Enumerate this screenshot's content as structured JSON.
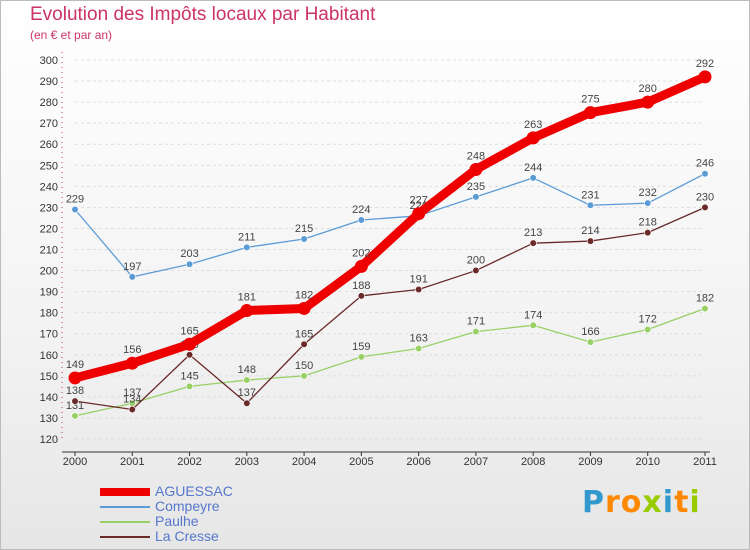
{
  "title": "Evolution des Impôts locaux par Habitant",
  "subtitle": "(en € et par an)",
  "logo": "Proxiti",
  "chart_data": {
    "type": "line",
    "title": "Evolution des Impôts locaux par Habitant",
    "subtitle": "(en € et par an)",
    "xlabel": "",
    "ylabel": "",
    "ylim": [
      120,
      300
    ],
    "yticks": [
      120,
      130,
      140,
      150,
      160,
      170,
      180,
      190,
      200,
      210,
      220,
      230,
      240,
      250,
      260,
      270,
      280,
      290,
      300
    ],
    "x": [
      "2000",
      "2001",
      "2002",
      "2003",
      "2004",
      "2005",
      "2006",
      "2007",
      "2008",
      "2009",
      "2010",
      "2011"
    ],
    "series": [
      {
        "name": "Compeyre",
        "color": "#5b9bd5",
        "values": [
          229,
          197,
          203,
          211,
          215,
          224,
          226,
          235,
          244,
          231,
          232,
          246
        ]
      },
      {
        "name": "Paulhe",
        "color": "#99d066",
        "values": [
          131,
          137,
          145,
          148,
          150,
          159,
          163,
          171,
          174,
          166,
          172,
          182
        ]
      },
      {
        "name": "La Cresse",
        "color": "#6b2a2a",
        "values": [
          138,
          134,
          160,
          137,
          165,
          188,
          191,
          200,
          213,
          214,
          218,
          230
        ]
      },
      {
        "name": "AGUESSAC",
        "color": "#ee0000",
        "values": [
          149,
          156,
          165,
          181,
          182,
          202,
          227,
          248,
          263,
          275,
          280,
          292
        ]
      }
    ],
    "legend": [
      "AGUESSAC",
      "Compeyre",
      "Paulhe",
      "La Cresse"
    ],
    "legend_position": "bottom-left"
  }
}
